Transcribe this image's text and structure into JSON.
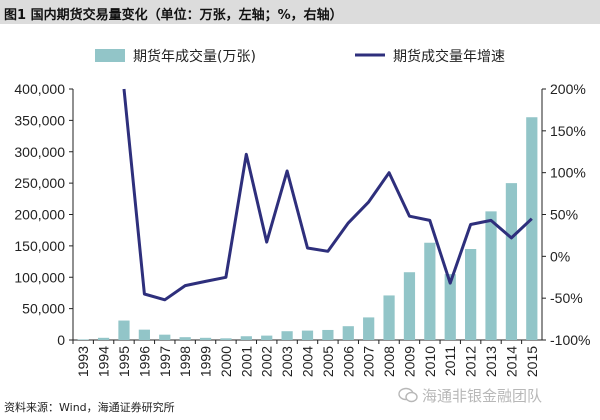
{
  "header": {
    "title": "图1  国内期货交易量变化（单位：万张，左轴；%，右轴）"
  },
  "source": "资料来源：Wind，海通证券研究所",
  "watermark": "海通非银金融团队",
  "colors": {
    "bar": "#92c5c8",
    "line": "#2e2f7c",
    "axis": "#222222",
    "header_bg": "#dcdcdc"
  },
  "chart_data": {
    "type": "bar",
    "categories": [
      "1993",
      "1994",
      "1995",
      "1996",
      "1997",
      "1998",
      "1999",
      "2000",
      "2001",
      "2002",
      "2003",
      "2004",
      "2005",
      "2006",
      "2007",
      "2008",
      "2009",
      "2010",
      "2011",
      "2012",
      "2013",
      "2014",
      "2015"
    ],
    "series": [
      {
        "name": "期货年成交量(万张)",
        "type": "bar",
        "axis": "left",
        "values": [
          900,
          3500,
          31000,
          16500,
          8500,
          4500,
          3500,
          2700,
          6000,
          7000,
          14000,
          15000,
          16000,
          22000,
          36000,
          71000,
          108000,
          155000,
          105000,
          145000,
          205000,
          250000,
          355000
        ]
      },
      {
        "name": "期货成交量年增速",
        "type": "line",
        "axis": "right",
        "values": [
          null,
          null,
          200,
          -45,
          -52,
          -35,
          -30,
          -25,
          122,
          17,
          102,
          10,
          6,
          40,
          65,
          100,
          48,
          43,
          -32,
          38,
          43,
          22,
          45
        ]
      }
    ],
    "y_left": {
      "ticks": [
        "400,000",
        "350,000",
        "300,000",
        "250,000",
        "200,000",
        "150,000",
        "100,000",
        "50,000",
        "0"
      ],
      "ylim": [
        0,
        400000
      ]
    },
    "y_right": {
      "ticks": [
        "200%",
        "150%",
        "100%",
        "50%",
        "0%",
        "-50%",
        "-100%"
      ],
      "ylim": [
        -100,
        200
      ]
    },
    "grid": false,
    "legend": "top"
  }
}
